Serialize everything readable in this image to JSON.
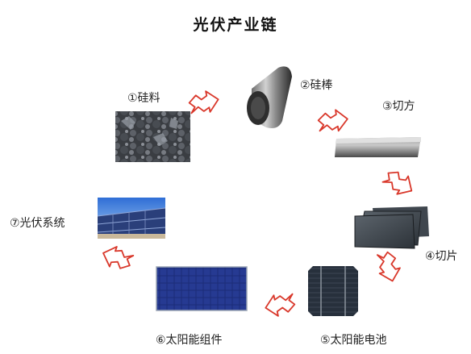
{
  "diagram": {
    "title": "光伏产业链",
    "steps": [
      {
        "id": "silicon-material",
        "label": "①硅料"
      },
      {
        "id": "silicon-ingot",
        "label": "②硅棒"
      },
      {
        "id": "squaring",
        "label": "③切方"
      },
      {
        "id": "wafer",
        "label": "④切片"
      },
      {
        "id": "solar-cell",
        "label": "⑤太阳能电池"
      },
      {
        "id": "solar-module",
        "label": "⑥太阳能组件"
      },
      {
        "id": "pv-system",
        "label": "⑦光伏系统"
      }
    ],
    "colors": {
      "arrow_stroke": "#d9382b",
      "arrow_fill": "#ffffff"
    }
  }
}
